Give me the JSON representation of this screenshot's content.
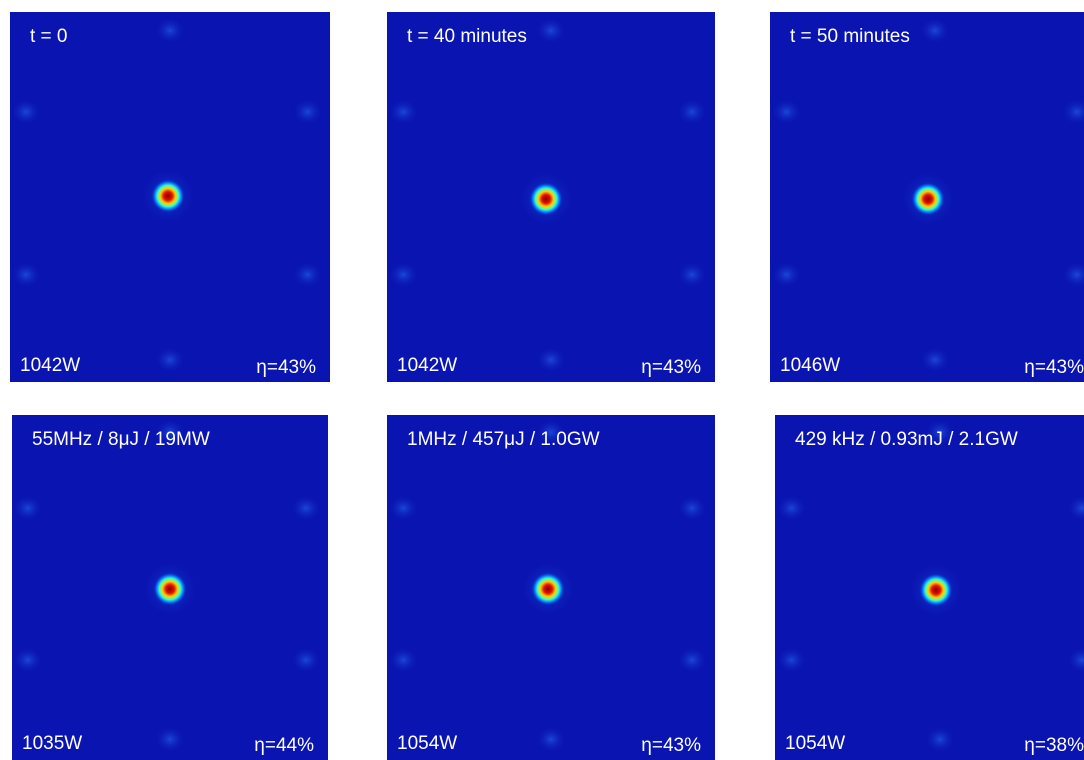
{
  "panels": [
    {
      "top_label": "t = 0",
      "power": "1042W",
      "efficiency": "η=43%"
    },
    {
      "top_label": "t = 40 minutes",
      "power": "1042W",
      "efficiency": "η=43%"
    },
    {
      "top_label": "t = 50 minutes",
      "power": "1046W",
      "efficiency": "η=43%"
    },
    {
      "top_label": "55MHz / 8μJ / 19MW",
      "power": "1035W",
      "efficiency": "η=44%"
    },
    {
      "top_label": "1MHz / 457μJ / 1.0GW",
      "power": "1054W",
      "efficiency": "η=43%"
    },
    {
      "top_label": "429 kHz / 0.93mJ / 2.1GW",
      "power": "1054W",
      "efficiency": "η=38%"
    }
  ]
}
